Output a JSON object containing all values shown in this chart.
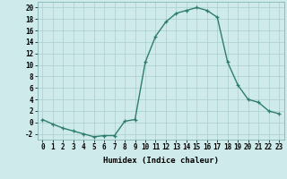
{
  "x": [
    0,
    1,
    2,
    3,
    4,
    5,
    6,
    7,
    8,
    9,
    10,
    11,
    12,
    13,
    14,
    15,
    16,
    17,
    18,
    19,
    20,
    21,
    22,
    23
  ],
  "y": [
    0.5,
    -0.3,
    -1.0,
    -1.5,
    -2.0,
    -2.5,
    -2.3,
    -2.3,
    0.2,
    0.5,
    10.5,
    15.0,
    17.5,
    19.0,
    19.5,
    20.0,
    19.5,
    18.3,
    10.5,
    6.5,
    4.0,
    3.5,
    2.0,
    1.5
  ],
  "line_color": "#2e7d6e",
  "marker": "+",
  "marker_size": 3,
  "marker_lw": 0.9,
  "bg_color": "#ceeaea",
  "grid_color": "#aacece",
  "xlabel": "Humidex (Indice chaleur)",
  "xlim": [
    -0.5,
    23.5
  ],
  "ylim": [
    -3,
    21
  ],
  "yticks": [
    -2,
    0,
    2,
    4,
    6,
    8,
    10,
    12,
    14,
    16,
    18,
    20
  ],
  "label_fontsize": 6.5,
  "tick_fontsize": 5.5,
  "linewidth": 1.0
}
